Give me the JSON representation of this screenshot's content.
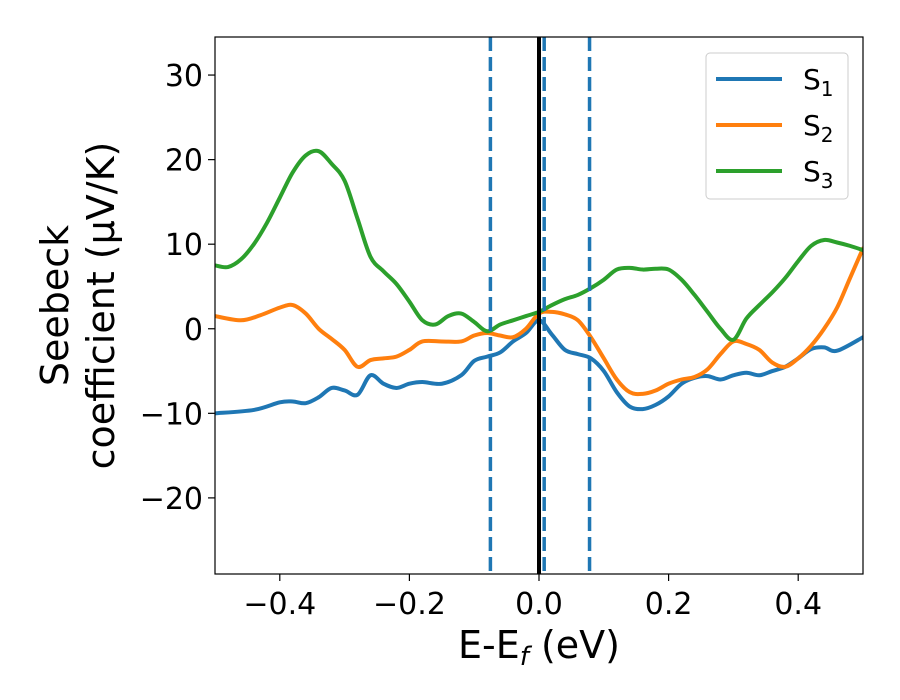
{
  "chart_data": {
    "type": "line",
    "title": "",
    "xlabel": {
      "main": "E-E",
      "sub": "f",
      "unit": " (eV)"
    },
    "ylabel": {
      "line1": "Seebeck",
      "line2": "coefficient  (μV/K)"
    },
    "xlim": [
      -0.5,
      0.5
    ],
    "ylim": [
      -29,
      34.5
    ],
    "xticks": [
      -0.4,
      -0.2,
      0.0,
      0.2,
      0.4
    ],
    "xtick_labels": [
      "−0.4",
      "−0.2",
      "0.0",
      "0.2",
      "0.4"
    ],
    "yticks": [
      -20,
      -10,
      0,
      10,
      20,
      30
    ],
    "ytick_labels": [
      "−20",
      "−10",
      "0",
      "10",
      "20",
      "30"
    ],
    "grid": false,
    "legend_position": "top-right",
    "series": [
      {
        "name": "S",
        "sub": "1",
        "color": "#1f77b4",
        "x": [
          -0.5,
          -0.44,
          -0.4,
          -0.38,
          -0.36,
          -0.34,
          -0.32,
          -0.3,
          -0.28,
          -0.26,
          -0.24,
          -0.22,
          -0.2,
          -0.18,
          -0.15,
          -0.12,
          -0.1,
          -0.08,
          -0.06,
          -0.04,
          -0.02,
          0.0,
          0.02,
          0.04,
          0.06,
          0.08,
          0.1,
          0.12,
          0.14,
          0.16,
          0.18,
          0.2,
          0.22,
          0.24,
          0.26,
          0.28,
          0.3,
          0.32,
          0.34,
          0.36,
          0.38,
          0.4,
          0.42,
          0.44,
          0.46,
          0.5
        ],
        "y": [
          -10,
          -9.6,
          -8.7,
          -8.6,
          -8.8,
          -8.1,
          -7.0,
          -7.3,
          -7.8,
          -5.5,
          -6.5,
          -7.0,
          -6.5,
          -6.3,
          -6.5,
          -5.5,
          -3.8,
          -3.3,
          -2.8,
          -1.5,
          -0.5,
          1.0,
          -0.7,
          -2.5,
          -3.0,
          -3.5,
          -5.0,
          -7.5,
          -9.2,
          -9.5,
          -9.0,
          -8.0,
          -6.5,
          -5.8,
          -5.6,
          -6.0,
          -5.5,
          -5.2,
          -5.5,
          -5.0,
          -4.5,
          -3.5,
          -2.4,
          -2.2,
          -2.6,
          -1.0
        ]
      },
      {
        "name": "S",
        "sub": "2",
        "color": "#ff7f0e",
        "x": [
          -0.5,
          -0.46,
          -0.43,
          -0.4,
          -0.38,
          -0.36,
          -0.34,
          -0.32,
          -0.3,
          -0.28,
          -0.26,
          -0.24,
          -0.22,
          -0.2,
          -0.18,
          -0.15,
          -0.12,
          -0.1,
          -0.08,
          -0.06,
          -0.04,
          -0.02,
          0.0,
          0.02,
          0.04,
          0.06,
          0.08,
          0.1,
          0.12,
          0.14,
          0.16,
          0.18,
          0.2,
          0.22,
          0.24,
          0.26,
          0.28,
          0.3,
          0.32,
          0.34,
          0.36,
          0.38,
          0.4,
          0.42,
          0.44,
          0.46,
          0.48,
          0.5
        ],
        "y": [
          1.5,
          1.0,
          1.6,
          2.5,
          2.8,
          1.8,
          0.0,
          -1.2,
          -2.5,
          -4.5,
          -3.7,
          -3.5,
          -3.3,
          -2.5,
          -1.5,
          -1.5,
          -1.5,
          -0.8,
          -0.5,
          -0.8,
          -1.0,
          0.0,
          1.8,
          2.0,
          1.7,
          1.0,
          -1.0,
          -3.5,
          -6.0,
          -7.5,
          -7.7,
          -7.3,
          -6.5,
          -6.0,
          -5.7,
          -4.8,
          -3.0,
          -1.5,
          -1.8,
          -2.5,
          -4.0,
          -4.5,
          -3.5,
          -2.0,
          0.0,
          2.5,
          6.0,
          9.5
        ]
      },
      {
        "name": "S",
        "sub": "3",
        "color": "#2ca02c",
        "x": [
          -0.5,
          -0.48,
          -0.46,
          -0.44,
          -0.42,
          -0.4,
          -0.38,
          -0.36,
          -0.34,
          -0.32,
          -0.3,
          -0.28,
          -0.26,
          -0.24,
          -0.22,
          -0.2,
          -0.18,
          -0.16,
          -0.14,
          -0.12,
          -0.1,
          -0.08,
          -0.06,
          -0.04,
          -0.02,
          0.0,
          0.02,
          0.04,
          0.06,
          0.08,
          0.1,
          0.12,
          0.14,
          0.16,
          0.18,
          0.2,
          0.22,
          0.24,
          0.26,
          0.28,
          0.3,
          0.32,
          0.34,
          0.36,
          0.38,
          0.4,
          0.42,
          0.44,
          0.46,
          0.48,
          0.5
        ],
        "y": [
          7.5,
          7.3,
          8.2,
          10.0,
          12.5,
          15.5,
          18.5,
          20.5,
          21.0,
          19.5,
          17.5,
          13.0,
          8.5,
          6.8,
          5.3,
          3.2,
          1.0,
          0.5,
          1.5,
          1.8,
          0.8,
          -0.3,
          0.5,
          1.0,
          1.5,
          2.0,
          2.8,
          3.5,
          4.0,
          4.8,
          5.8,
          7.0,
          7.2,
          7.0,
          7.1,
          7.0,
          5.8,
          4.0,
          2.0,
          0.0,
          -1.3,
          1.2,
          2.8,
          4.3,
          6.0,
          8.0,
          9.8,
          10.5,
          10.2,
          9.8,
          9.3
        ]
      }
    ],
    "vertical_lines": [
      {
        "x": 0.0,
        "style": "solid",
        "color": "#000000"
      },
      {
        "x": -0.075,
        "style": "dashed",
        "color": "#1f77b4"
      },
      {
        "x": 0.008,
        "style": "dashed",
        "color": "#1f77b4"
      },
      {
        "x": 0.078,
        "style": "dashed",
        "color": "#1f77b4"
      }
    ]
  }
}
